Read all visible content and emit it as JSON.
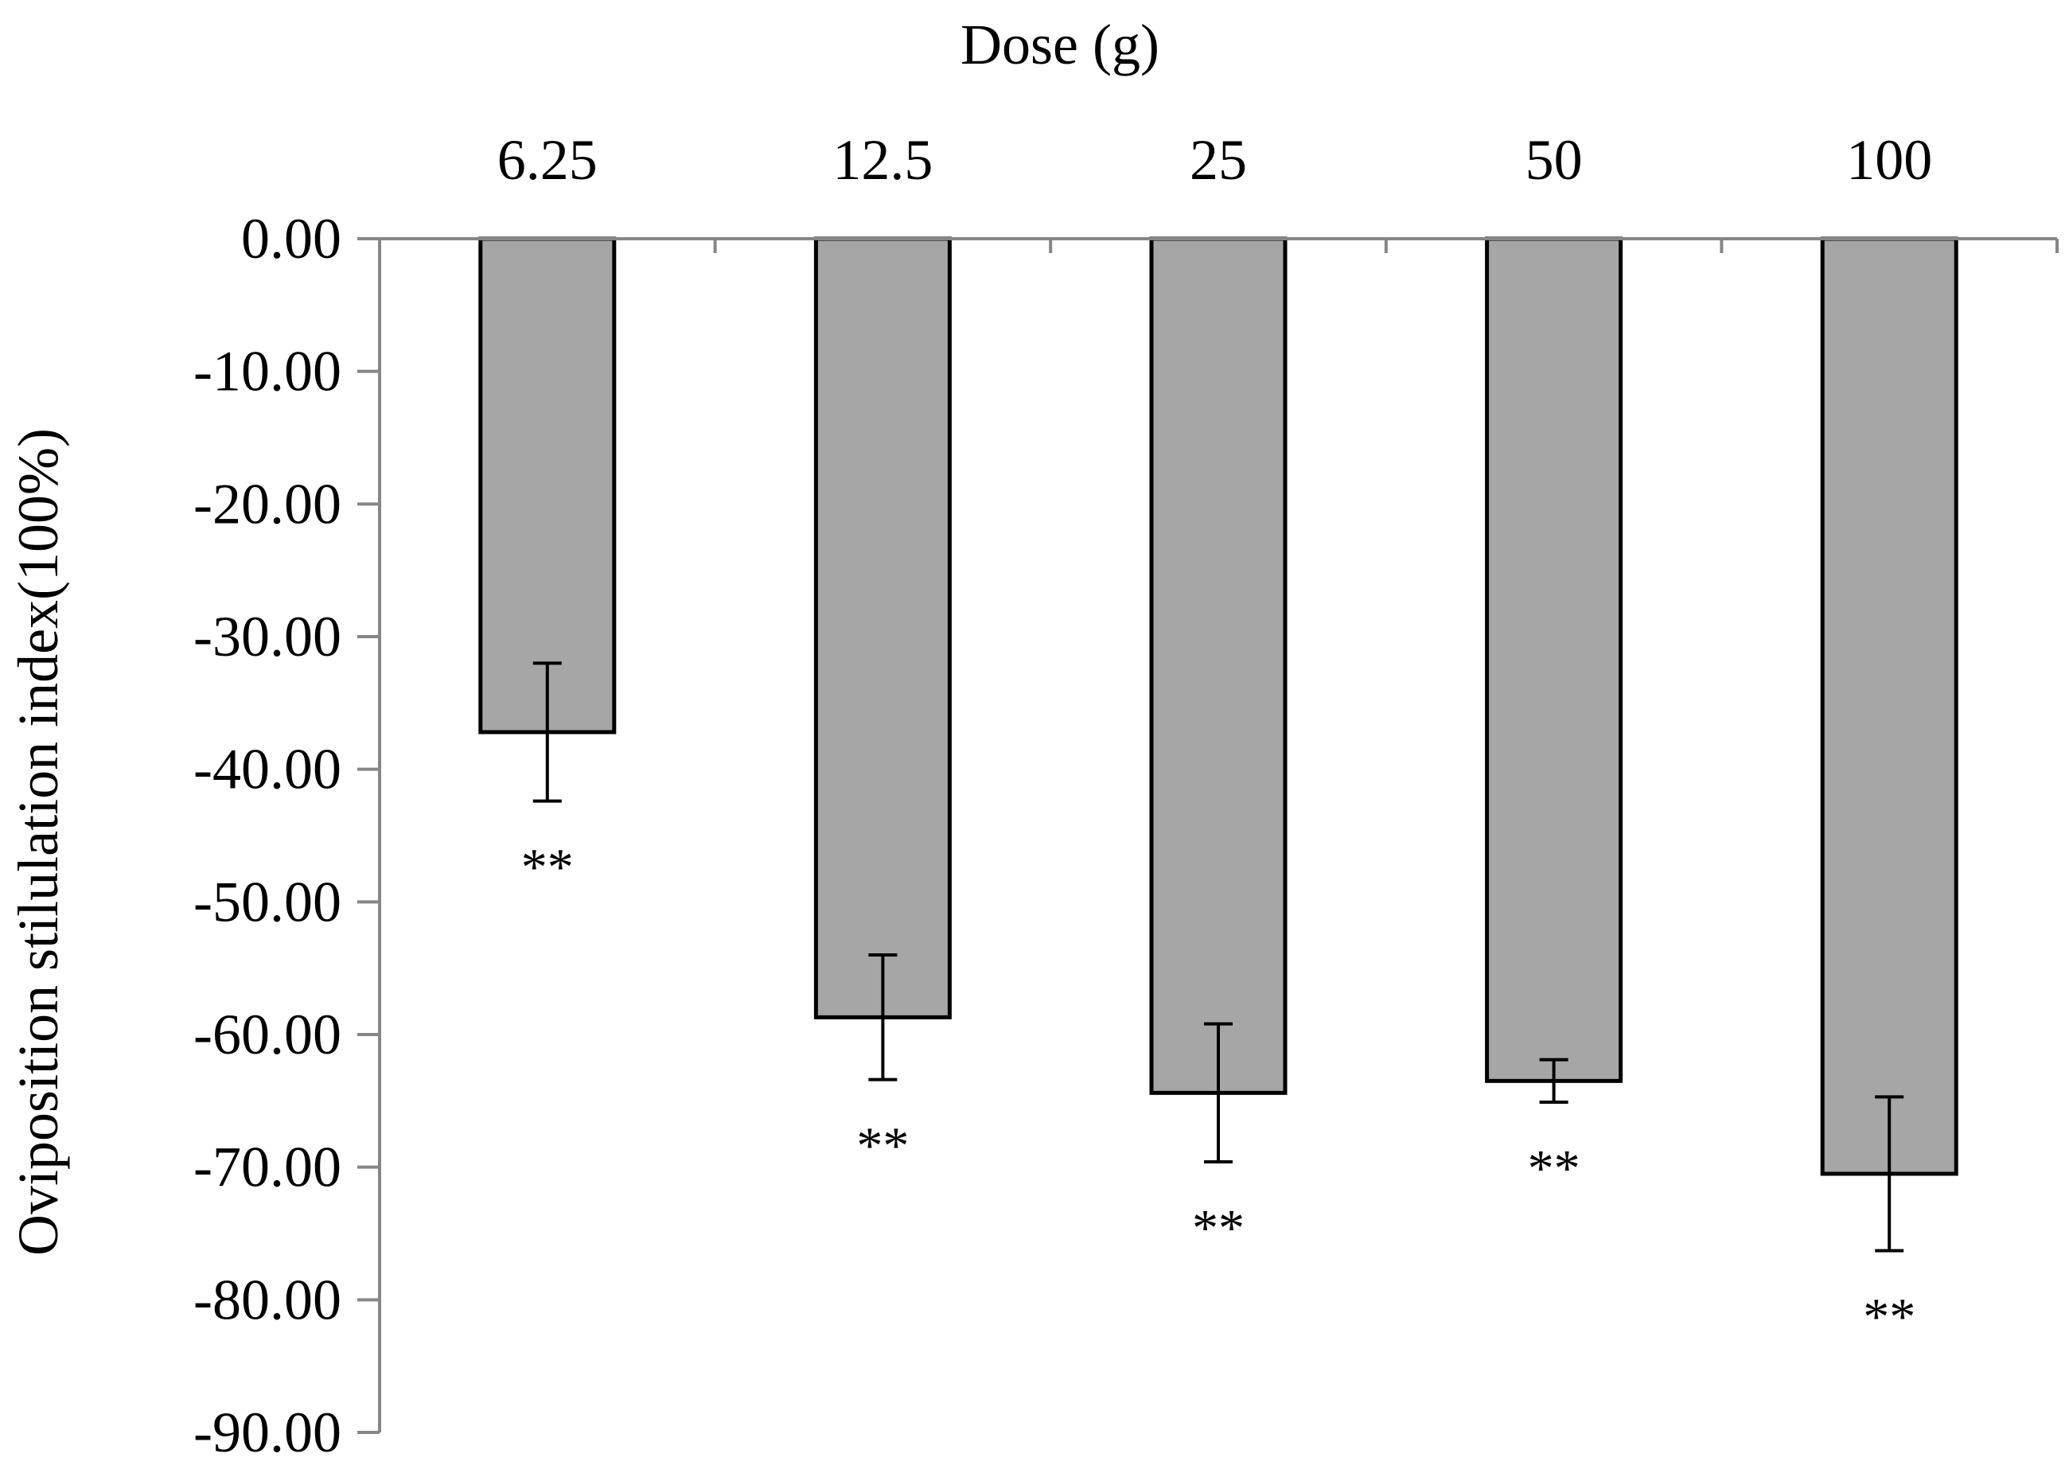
{
  "chart_data": {
    "type": "bar",
    "title": "",
    "xlabel": "Dose (g)",
    "ylabel": "Oviposition stilulation index(100%)",
    "categories": [
      "6.25",
      "12.5",
      "25",
      "50",
      "100"
    ],
    "values": [
      -37.2,
      -58.7,
      -64.4,
      -63.5,
      -70.5
    ],
    "error": [
      5.2,
      4.7,
      5.2,
      1.6,
      5.8
    ],
    "annotations": [
      "**",
      "**",
      "**",
      "**",
      "**"
    ],
    "ylim": [
      -90,
      0
    ],
    "yticks": [
      0,
      -10,
      -20,
      -30,
      -40,
      -50,
      -60,
      -70,
      -80,
      -90
    ],
    "ytick_labels": [
      "0.00",
      "-10.00",
      "-20.00",
      "-30.00",
      "-40.00",
      "-50.00",
      "-60.00",
      "-70.00",
      "-80.00",
      "-90.00"
    ],
    "x_axis_position": "top",
    "grid": false,
    "bar_color": "#a6a6a6",
    "bar_edge_color": "#000000",
    "axis_color": "#868686"
  }
}
